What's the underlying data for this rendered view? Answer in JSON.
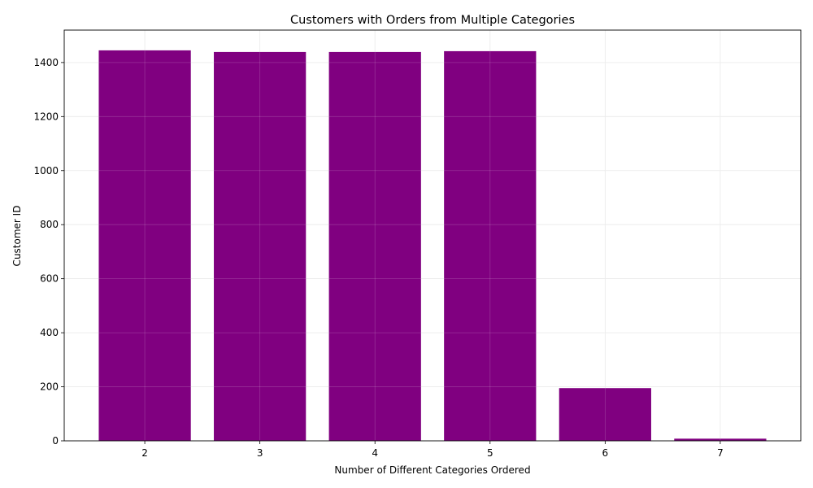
{
  "chart_data": {
    "type": "bar",
    "title": "Customers with Orders from Multiple Categories",
    "xlabel": "Number of Different Categories Ordered",
    "ylabel": "Customer ID",
    "categories": [
      "2",
      "3",
      "4",
      "5",
      "6",
      "7"
    ],
    "x": [
      2,
      3,
      4,
      5,
      6,
      7
    ],
    "values": [
      1445,
      1439,
      1439,
      1442,
      195,
      8
    ],
    "xlim": [
      1.3,
      7.7
    ],
    "ylim": [
      0,
      1520
    ],
    "yticks": [
      0,
      200,
      400,
      600,
      800,
      1000,
      1200,
      1400
    ],
    "xticks": [
      2,
      3,
      4,
      5,
      6,
      7
    ],
    "bar_color": "#800080",
    "grid": true,
    "grid_color": "#e6e6e6",
    "legend": "none"
  }
}
